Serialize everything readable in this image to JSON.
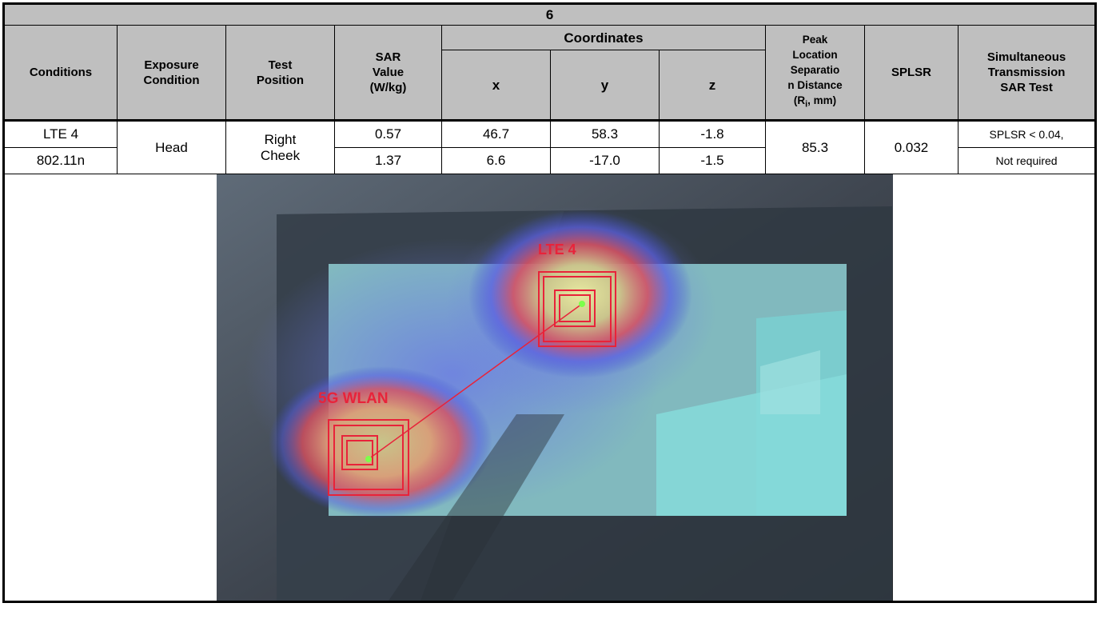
{
  "table": {
    "title": "6",
    "headers": {
      "conditions": "Conditions",
      "exposure": [
        "Exposure",
        "Condition"
      ],
      "test_position": [
        "Test",
        "Position"
      ],
      "sar": [
        "SAR",
        "Value",
        "(W/kg)"
      ],
      "coordinates": "Coordinates",
      "x": "x",
      "y": "y",
      "z": "z",
      "peak": "Peak",
      "peak_lines": [
        "Location",
        "Separatio",
        "n Distance"
      ],
      "peak_unit_pre": "(R",
      "peak_unit_sub": "i",
      "peak_unit_post": ", mm)",
      "splsr": "SPLSR",
      "simul": [
        "Simultaneous",
        "Transmission",
        "SAR Test"
      ]
    },
    "rows": [
      {
        "condition": "LTE 4",
        "sar": "0.57",
        "x": "46.7",
        "y": "58.3",
        "z": "-1.8"
      },
      {
        "condition": "802.11n",
        "sar": "1.37",
        "x": "6.6",
        "y": "-17.0",
        "z": "-1.5"
      }
    ],
    "exposure": "Head",
    "test_position": [
      "Right",
      "Cheek"
    ],
    "separation": "85.3",
    "splsr": "0.032",
    "simul_result": [
      "SPLSR < 0.04,",
      "Not required"
    ]
  },
  "image": {
    "label_lte": "LTE 4",
    "label_wlan": "5G WLAN",
    "accent": "#e8233a",
    "marker": "#7cff4a"
  }
}
